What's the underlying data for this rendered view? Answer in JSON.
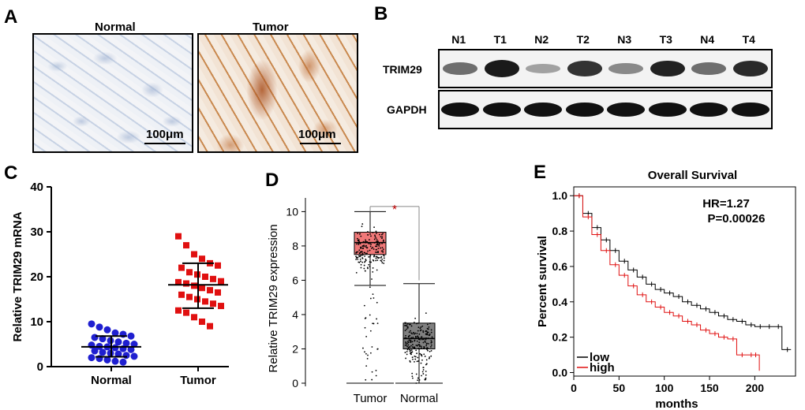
{
  "panels": {
    "A": {
      "label": "A",
      "images": [
        {
          "title": "Normal",
          "scale": "100μm"
        },
        {
          "title": "Tumor",
          "scale": "100μm"
        }
      ]
    },
    "B": {
      "label": "B",
      "lanes": [
        "N1",
        "T1",
        "N2",
        "T2",
        "N3",
        "T3",
        "N4",
        "T4"
      ],
      "rows": [
        "TRIM29",
        "GAPDH"
      ],
      "trim29_intensity": [
        0.45,
        0.95,
        0.15,
        0.8,
        0.3,
        0.9,
        0.45,
        0.85
      ]
    },
    "C": {
      "label": "C"
    },
    "D": {
      "label": "D"
    },
    "E": {
      "label": "E"
    }
  },
  "chart_data": [
    {
      "id": "C",
      "type": "scatter",
      "ylabel": "Relative TRIM29 mRNA",
      "categories": [
        "Normal",
        "Tumor"
      ],
      "ylim": [
        0,
        40
      ],
      "yticks": [
        0,
        10,
        20,
        30,
        40
      ],
      "colors": [
        "#1f1fd0",
        "#e01010"
      ],
      "series": [
        {
          "name": "Normal",
          "values": [
            9.5,
            8.8,
            8.2,
            7.5,
            7.2,
            6.8,
            6.5,
            6.2,
            5.8,
            5.5,
            5.2,
            5.0,
            4.8,
            4.5,
            4.4,
            4.2,
            4.0,
            3.8,
            3.5,
            3.2,
            3.0,
            2.8,
            2.5,
            2.3,
            2.0,
            1.8,
            1.5,
            1.2,
            1.0
          ],
          "mean": 4.4,
          "sd_low": 2.2,
          "sd_high": 6.8
        },
        {
          "name": "Tumor",
          "values": [
            29.0,
            27.0,
            25.0,
            24.0,
            23.0,
            22.5,
            22.0,
            21.0,
            20.5,
            20.0,
            19.5,
            19.0,
            18.8,
            18.5,
            18.0,
            17.5,
            17.0,
            16.5,
            16.0,
            15.5,
            15.0,
            14.5,
            14.0,
            13.5,
            12.5,
            12.0,
            11.0,
            10.0,
            9.0
          ],
          "mean": 18.2,
          "sd_low": 13.0,
          "sd_high": 23.0
        }
      ]
    },
    {
      "id": "D",
      "type": "box",
      "ylabel": "Relative TRIM29 expression",
      "categories": [
        "Tumor",
        "Normal"
      ],
      "ylim": [
        0,
        10.8
      ],
      "yticks": [
        0,
        2,
        4,
        6,
        8,
        10
      ],
      "significance": "*",
      "colors": [
        "#f07878",
        "#808080"
      ],
      "boxes": [
        {
          "name": "Tumor",
          "min": 0.0,
          "q1": 7.5,
          "median": 8.2,
          "q3": 8.8,
          "max": 10.0,
          "whisker_low": 5.7
        },
        {
          "name": "Normal",
          "min": 0.0,
          "q1": 2.0,
          "median": 2.6,
          "q3": 3.5,
          "max": 5.8,
          "whisker_low": 0.0
        }
      ]
    },
    {
      "id": "E",
      "type": "line",
      "title": "Overall Survival",
      "xlabel": "months",
      "ylabel": "Percent survival",
      "xlim": [
        0,
        245
      ],
      "ylim": [
        -0.02,
        1.05
      ],
      "xticks": [
        0,
        50,
        100,
        150,
        200
      ],
      "yticks": [
        0.0,
        0.2,
        0.4,
        0.6,
        0.8,
        1.0
      ],
      "annotations": [
        "HR=1.27",
        "P=0.00026"
      ],
      "series": [
        {
          "name": "low",
          "color": "#000000",
          "x": [
            0,
            10,
            20,
            30,
            40,
            50,
            60,
            70,
            80,
            90,
            100,
            110,
            120,
            130,
            140,
            150,
            160,
            170,
            180,
            190,
            200,
            210,
            220,
            230,
            240
          ],
          "y": [
            1.0,
            0.9,
            0.82,
            0.75,
            0.69,
            0.63,
            0.58,
            0.54,
            0.5,
            0.47,
            0.45,
            0.43,
            0.4,
            0.38,
            0.36,
            0.34,
            0.32,
            0.3,
            0.29,
            0.27,
            0.26,
            0.26,
            0.26,
            0.13,
            0.13
          ]
        },
        {
          "name": "high",
          "color": "#e01010",
          "x": [
            0,
            10,
            20,
            30,
            40,
            50,
            60,
            70,
            80,
            90,
            100,
            110,
            120,
            130,
            140,
            150,
            160,
            170,
            180,
            190,
            200,
            205
          ],
          "y": [
            1.0,
            0.88,
            0.78,
            0.69,
            0.61,
            0.55,
            0.49,
            0.44,
            0.4,
            0.37,
            0.34,
            0.32,
            0.29,
            0.27,
            0.24,
            0.22,
            0.2,
            0.19,
            0.1,
            0.1,
            0.1,
            0.01
          ]
        }
      ]
    }
  ]
}
